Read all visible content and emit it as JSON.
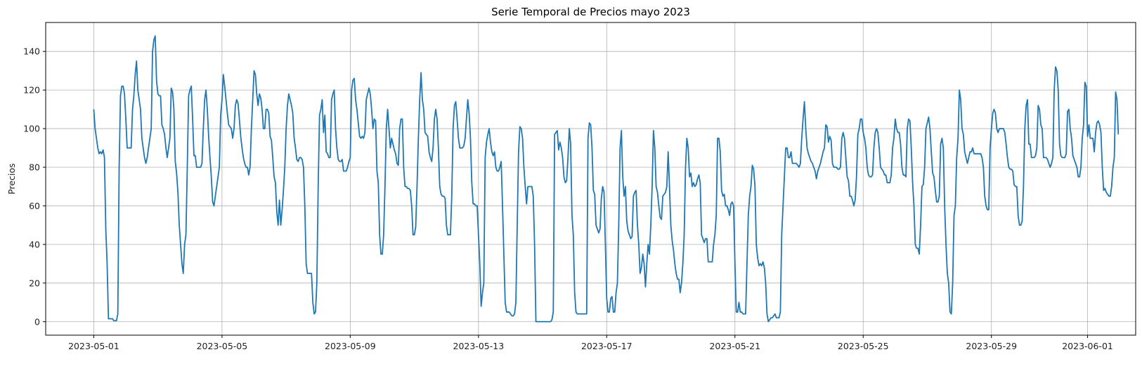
{
  "chart_data": {
    "type": "line",
    "title": "Serie Temporal de Precios mayo 2023",
    "xlabel": "",
    "ylabel": "Precios",
    "xlim": [
      "2023-04-29T12:00",
      "2023-06-02T12:00"
    ],
    "ylim": [
      -7,
      155
    ],
    "x_ticks": [
      "2023-05-01",
      "2023-05-05",
      "2023-05-09",
      "2023-05-13",
      "2023-05-17",
      "2023-05-21",
      "2023-05-25",
      "2023-05-29",
      "2023-06-01"
    ],
    "y_ticks": [
      0,
      20,
      40,
      60,
      80,
      100,
      120,
      140
    ],
    "grid": true,
    "line_color": "#1f77b4",
    "series": [
      {
        "x_start": "2023-05-01T00:00",
        "step_hours": 1,
        "values": [
          110,
          100,
          95,
          90,
          87,
          88,
          87,
          89,
          85,
          48,
          30,
          1.5,
          1.5,
          1.5,
          1.5,
          0.5,
          0.5,
          0.5,
          4,
          80,
          117,
          122,
          122,
          118,
          105,
          90,
          90,
          90,
          90,
          110,
          117,
          128,
          135,
          120,
          115,
          110,
          95,
          90,
          85,
          82,
          85,
          90,
          95,
          100,
          140,
          146,
          148,
          125,
          118,
          117,
          117,
          102,
          100,
          97,
          90,
          85,
          90,
          95,
          121,
          119,
          110,
          83,
          77,
          67,
          50,
          40,
          30,
          25,
          40,
          45,
          80,
          117,
          120,
          122,
          105,
          86,
          86,
          80,
          80,
          80,
          80,
          82,
          100,
          115,
          120,
          110,
          96,
          85,
          75,
          62,
          60,
          65,
          70,
          75,
          80,
          107,
          115,
          128,
          122,
          115,
          108,
          102,
          101,
          100,
          95,
          100,
          112,
          115,
          113,
          105,
          96,
          90,
          85,
          82,
          80,
          80,
          76,
          80,
          100,
          115,
          130,
          128,
          118,
          112,
          118,
          116,
          110,
          100,
          100,
          110,
          110,
          108,
          96,
          94,
          85,
          75,
          72,
          57,
          50,
          63,
          50,
          58,
          68,
          80,
          100,
          112,
          118,
          115,
          112,
          108,
          95,
          90,
          84,
          83,
          85,
          85,
          84,
          80,
          60,
          30,
          25,
          25,
          25,
          25,
          10,
          4,
          5,
          20,
          70,
          107,
          110,
          115,
          98,
          107,
          88,
          87,
          85,
          85,
          115,
          118,
          120,
          100,
          90,
          84,
          83,
          83,
          84,
          78,
          78,
          78,
          80,
          83,
          85,
          120,
          125,
          126,
          115,
          110,
          103,
          96,
          95,
          96,
          95,
          98,
          115,
          118,
          121,
          118,
          110,
          100,
          105,
          104,
          78,
          72,
          45,
          35,
          35,
          45,
          70,
          100,
          110,
          100,
          90,
          95,
          92,
          89,
          87,
          82,
          81,
          100,
          105,
          105,
          80,
          70,
          70,
          69,
          69,
          68,
          60,
          45,
          45,
          49,
          70,
          95,
          115,
          129,
          115,
          110,
          98,
          97,
          96,
          88,
          85,
          83,
          90,
          105,
          110,
          105,
          90,
          70,
          66,
          65,
          65,
          64,
          50,
          45,
          45,
          45,
          65,
          100,
          112,
          114,
          105,
          95,
          90,
          90,
          90,
          91,
          95,
          105,
          115,
          108,
          95,
          72,
          61,
          61,
          60,
          60,
          45,
          30,
          8,
          15,
          20,
          85,
          93,
          97,
          100,
          93,
          88,
          86,
          88,
          80,
          78,
          78,
          80,
          83,
          60,
          35,
          10,
          5,
          5,
          5,
          4,
          3,
          3,
          4,
          10,
          50,
          88,
          101,
          100,
          95,
          80,
          70,
          61,
          70,
          70,
          70,
          70,
          65,
          40,
          0,
          0,
          0,
          0,
          0,
          0,
          0,
          0,
          0,
          0,
          0,
          0,
          1,
          5,
          97,
          98,
          99,
          89,
          93,
          90,
          85,
          75,
          72,
          73,
          85,
          100,
          92,
          55,
          45,
          15,
          5,
          4,
          4,
          4,
          4,
          4,
          4,
          4,
          4,
          95,
          103,
          102,
          90,
          68,
          66,
          50,
          48,
          46,
          48,
          64,
          70,
          67,
          40,
          12,
          5,
          5,
          12,
          13,
          5,
          5,
          15,
          20,
          50,
          90,
          99,
          75,
          65,
          70,
          52,
          47,
          45,
          43,
          44,
          65,
          67,
          68,
          50,
          40,
          25,
          28,
          35,
          30,
          18,
          30,
          40,
          35,
          50,
          70,
          99,
          90,
          70,
          67,
          60,
          54,
          53,
          65,
          66,
          67,
          70,
          88,
          70,
          50,
          42,
          37,
          30,
          25,
          22,
          22,
          15,
          20,
          30,
          45,
          80,
          95,
          90,
          75,
          77,
          70,
          72,
          70,
          71,
          74,
          76,
          72,
          45,
          43,
          41,
          43,
          43,
          31,
          31,
          31,
          31,
          40,
          45,
          55,
          95,
          95,
          88,
          68,
          65,
          66,
          60,
          60,
          58,
          55,
          61,
          62,
          60,
          30,
          5,
          5,
          10,
          5,
          5,
          4,
          4,
          4,
          30,
          55,
          65,
          70,
          81,
          79,
          70,
          40,
          33,
          29,
          30,
          29,
          31,
          28,
          20,
          4,
          0,
          1,
          2,
          2,
          3,
          4,
          2,
          2,
          2,
          5,
          45,
          60,
          75,
          90,
          90,
          85,
          85,
          88,
          82,
          82,
          82,
          82,
          81,
          80,
          82,
          95,
          105,
          114,
          100,
          90,
          87,
          85,
          83,
          82,
          80,
          78,
          74,
          78,
          80,
          82,
          85,
          88,
          90,
          102,
          101,
          93,
          96,
          94,
          82,
          80,
          80,
          80,
          79,
          79,
          80,
          95,
          98,
          95,
          85,
          75,
          73,
          65,
          65,
          63,
          60,
          63,
          75,
          97,
          100,
          105,
          105,
          98,
          95,
          90,
          80,
          76,
          75,
          75,
          76,
          90,
          98,
          100,
          98,
          90,
          80,
          79,
          78,
          76,
          76,
          72,
          72,
          72,
          76,
          90,
          95,
          105,
          100,
          98,
          98,
          92,
          80,
          76,
          76,
          75,
          100,
          105,
          104,
          90,
          72,
          60,
          40,
          38,
          38,
          35,
          50,
          70,
          71,
          80,
          100,
          103,
          106,
          100,
          88,
          77,
          75,
          68,
          62,
          62,
          65,
          92,
          95,
          90,
          60,
          40,
          25,
          20,
          5,
          4,
          20,
          55,
          60,
          85,
          95,
          120,
          115,
          100,
          97,
          88,
          85,
          82,
          85,
          88,
          88,
          90,
          87,
          87,
          87,
          87,
          87,
          87,
          85,
          80,
          65,
          60,
          58,
          58,
          90,
          100,
          108,
          110,
          108,
          100,
          98,
          100,
          100,
          100,
          100,
          98,
          92,
          85,
          80,
          79,
          79,
          78,
          71,
          70,
          70,
          55,
          50,
          50,
          52,
          70,
          100,
          112,
          115,
          92,
          92,
          85,
          85,
          85,
          86,
          90,
          112,
          110,
          102,
          100,
          85,
          85,
          85,
          84,
          82,
          80,
          82,
          85,
          120,
          132,
          130,
          120,
          92,
          86,
          85,
          85,
          85,
          87,
          109,
          110,
          100,
          95,
          86,
          84,
          82,
          80,
          75,
          75,
          80,
          95,
          102,
          124,
          122,
          96,
          102,
          95,
          95,
          95,
          88,
          98,
          103,
          104,
          102,
          98,
          80,
          68,
          69,
          67,
          66,
          65,
          65,
          70,
          80,
          85,
          119,
          115,
          97
        ]
      }
    ]
  }
}
